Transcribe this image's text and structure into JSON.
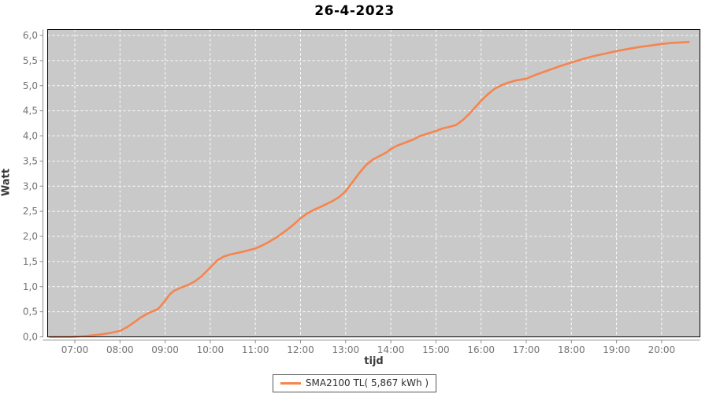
{
  "title": "26-4-2023",
  "colors": {
    "background": "#ffffff",
    "plot_background": "#c9c9c9",
    "gridline": "#ffffff",
    "plot_border": "#000000",
    "axis_line": "#8c8c8c",
    "tick_label": "#737373",
    "series_orange": "#f5854e",
    "title_text": "#000000",
    "axis_title_text": "#3a3a3a"
  },
  "legend": {
    "position": "bottom-center",
    "entries": [
      {
        "label": "SMA2100 TL( 5,867 kWh )",
        "color": "#f5854e"
      }
    ]
  },
  "chart_data": {
    "type": "line",
    "title": "26-4-2023",
    "xlabel": "tijd",
    "ylabel": "Watt",
    "ylim": [
      0,
      6.0
    ],
    "xlim_hours": [
      6.39,
      20.86
    ],
    "grid": "white dashed, horizontal every 0.5, vertical every hour",
    "legend_position": "bottom",
    "x_tick_labels": [
      "07:00",
      "08:00",
      "09:00",
      "10:00",
      "11:00",
      "12:00",
      "13:00",
      "14:00",
      "15:00",
      "16:00",
      "17:00",
      "18:00",
      "19:00",
      "20:00"
    ],
    "x_tick_hours": [
      7,
      8,
      9,
      10,
      11,
      12,
      13,
      14,
      15,
      16,
      17,
      18,
      19,
      20
    ],
    "y_tick_labels": [
      "0,0",
      "0,5",
      "1,0",
      "1,5",
      "2,0",
      "2,5",
      "3,0",
      "3,5",
      "4,0",
      "4,5",
      "5,0",
      "5,5",
      "6,0"
    ],
    "y_tick_values": [
      0,
      0.5,
      1,
      1.5,
      2,
      2.5,
      3,
      3.5,
      4,
      4.5,
      5,
      5.5,
      6
    ],
    "series": [
      {
        "name": "SMA2100 TL( 5,867 kWh )",
        "color": "#f5854e",
        "final_total_kwh": 5.867,
        "points": [
          [
            6.45,
            0.0
          ],
          [
            6.7,
            0.0
          ],
          [
            6.9,
            0.0
          ],
          [
            7.0,
            0.005
          ],
          [
            7.2,
            0.015
          ],
          [
            7.4,
            0.03
          ],
          [
            7.6,
            0.05
          ],
          [
            7.8,
            0.08
          ],
          [
            8.0,
            0.12
          ],
          [
            8.15,
            0.19
          ],
          [
            8.3,
            0.28
          ],
          [
            8.45,
            0.38
          ],
          [
            8.6,
            0.46
          ],
          [
            8.75,
            0.52
          ],
          [
            8.85,
            0.56
          ],
          [
            9.0,
            0.72
          ],
          [
            9.1,
            0.84
          ],
          [
            9.2,
            0.92
          ],
          [
            9.35,
            0.98
          ],
          [
            9.5,
            1.03
          ],
          [
            9.65,
            1.1
          ],
          [
            9.8,
            1.2
          ],
          [
            10.0,
            1.38
          ],
          [
            10.15,
            1.52
          ],
          [
            10.3,
            1.6
          ],
          [
            10.45,
            1.64
          ],
          [
            10.6,
            1.67
          ],
          [
            10.75,
            1.7
          ],
          [
            11.0,
            1.76
          ],
          [
            11.15,
            1.82
          ],
          [
            11.3,
            1.89
          ],
          [
            11.5,
            2.0
          ],
          [
            11.7,
            2.13
          ],
          [
            11.85,
            2.24
          ],
          [
            12.0,
            2.36
          ],
          [
            12.15,
            2.46
          ],
          [
            12.3,
            2.53
          ],
          [
            12.5,
            2.61
          ],
          [
            12.7,
            2.7
          ],
          [
            12.85,
            2.78
          ],
          [
            13.0,
            2.9
          ],
          [
            13.15,
            3.08
          ],
          [
            13.3,
            3.26
          ],
          [
            13.45,
            3.42
          ],
          [
            13.6,
            3.53
          ],
          [
            13.75,
            3.6
          ],
          [
            13.9,
            3.67
          ],
          [
            14.0,
            3.74
          ],
          [
            14.15,
            3.81
          ],
          [
            14.3,
            3.86
          ],
          [
            14.5,
            3.93
          ],
          [
            14.65,
            4.0
          ],
          [
            14.8,
            4.04
          ],
          [
            15.0,
            4.1
          ],
          [
            15.15,
            4.15
          ],
          [
            15.3,
            4.18
          ],
          [
            15.45,
            4.22
          ],
          [
            15.6,
            4.32
          ],
          [
            15.75,
            4.45
          ],
          [
            15.9,
            4.6
          ],
          [
            16.0,
            4.7
          ],
          [
            16.15,
            4.83
          ],
          [
            16.3,
            4.94
          ],
          [
            16.45,
            5.01
          ],
          [
            16.6,
            5.06
          ],
          [
            16.75,
            5.1
          ],
          [
            17.0,
            5.14
          ],
          [
            17.25,
            5.23
          ],
          [
            17.5,
            5.31
          ],
          [
            17.75,
            5.39
          ],
          [
            18.0,
            5.46
          ],
          [
            18.25,
            5.53
          ],
          [
            18.5,
            5.59
          ],
          [
            18.75,
            5.64
          ],
          [
            19.0,
            5.69
          ],
          [
            19.25,
            5.73
          ],
          [
            19.5,
            5.77
          ],
          [
            19.75,
            5.8
          ],
          [
            20.0,
            5.83
          ],
          [
            20.2,
            5.85
          ],
          [
            20.4,
            5.86
          ],
          [
            20.6,
            5.87
          ]
        ]
      }
    ]
  }
}
